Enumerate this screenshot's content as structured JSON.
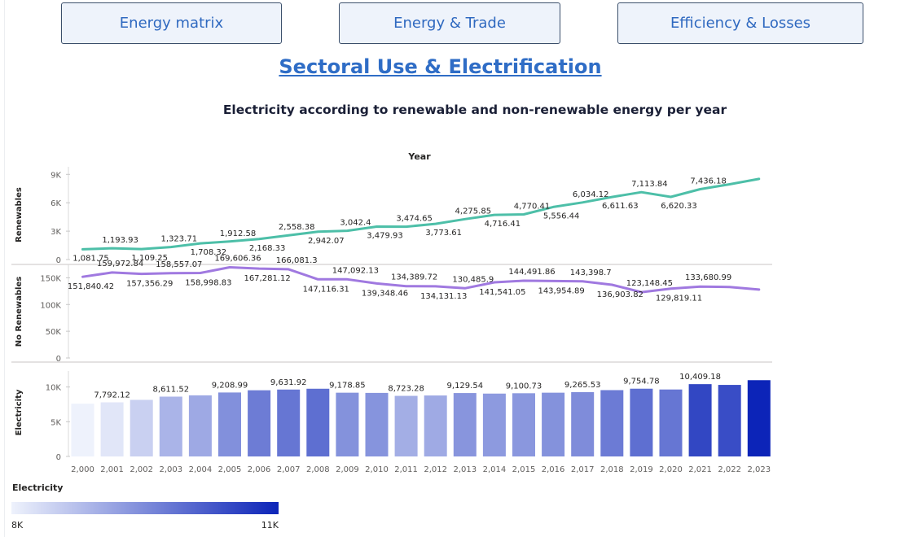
{
  "nav": {
    "buttons": [
      "Energy matrix",
      "Energy & Trade",
      "Efficiency & Losses"
    ]
  },
  "page_title": "Sectoral Use & Electrification",
  "chart_data": {
    "type": "line",
    "title": "Electricity according to renewable and non-renewable energy per year",
    "xlabel": "Year",
    "categories": [
      "2,000",
      "2,001",
      "2,002",
      "2,003",
      "2,004",
      "2,005",
      "2,006",
      "2,007",
      "2,008",
      "2,009",
      "2,010",
      "2,011",
      "2,012",
      "2,013",
      "2,014",
      "2,015",
      "2,016",
      "2,017",
      "2,018",
      "2,019",
      "2,020",
      "2,021",
      "2,022",
      "2,023"
    ],
    "panels": [
      {
        "type": "line",
        "ylabel": "Renewables",
        "color": "#4dbfa8",
        "ylim": [
          0,
          9800
        ],
        "yticks": [
          0,
          3000,
          6000,
          9000
        ],
        "ytick_labels": [
          "0",
          "3K",
          "6K",
          "9K"
        ],
        "values": [
          1081.75,
          1193.93,
          1109.25,
          1323.71,
          1708.32,
          1912.58,
          2168.33,
          2558.38,
          2942.07,
          3042.4,
          3479.93,
          3474.65,
          3773.61,
          4275.85,
          4716.41,
          4770.41,
          5556.44,
          6034.12,
          6611.63,
          7113.84,
          6620.33,
          7436.18,
          7956.0,
          8520.0
        ],
        "labels": [
          "1,081.75",
          "1,193.93",
          "1,109.25",
          "1,323.71",
          "1,708.32",
          "1,912.58",
          "2,168.33",
          "2,558.38",
          "2,942.07",
          "3,042.4",
          "3,479.93",
          "3,474.65",
          "3,773.61",
          "4,275.85",
          "4,716.41",
          "4,770.41",
          "5,556.44",
          "6,034.12",
          "6,611.63",
          "7,113.84",
          "6,620.33",
          "7,436.18",
          "",
          ""
        ]
      },
      {
        "type": "line",
        "ylabel": "No Renewables",
        "color": "#a079e0",
        "ylim": [
          0,
          175000
        ],
        "yticks": [
          0,
          50000,
          100000,
          150000
        ],
        "ytick_labels": [
          "0",
          "50K",
          "100K",
          "150K"
        ],
        "values": [
          151840.42,
          159972.84,
          157356.29,
          158557.07,
          158998.83,
          169606.36,
          167281.12,
          166081.3,
          147116.31,
          147092.13,
          139348.46,
          134389.72,
          134131.13,
          130485.9,
          141541.05,
          144491.86,
          143954.89,
          143398.7,
          136903.82,
          123148.45,
          129819.11,
          133680.99,
          132800.0,
          128000.0
        ],
        "labels": [
          "151,840.42",
          "159,972.84",
          "157,356.29",
          "158,557.07",
          "158,998.83",
          "169,606.36",
          "167,281.12",
          "166,081.3",
          "147,116.31",
          "147,092.13",
          "139,348.46",
          "134,389.72",
          "134,131.13",
          "130,485.9",
          "141,541.05",
          "144,491.86",
          "143,954.89",
          "143,398.7",
          "136,903.82",
          "123,148.45",
          "129,819.11",
          "133,680.99",
          "",
          ""
        ]
      },
      {
        "type": "bar",
        "ylabel": "Electricity",
        "ylim": [
          0,
          12300
        ],
        "yticks": [
          0,
          5000,
          10000
        ],
        "ytick_labels": [
          "0",
          "5K",
          "10K"
        ],
        "values": [
          7600,
          7792.12,
          8150,
          8611.52,
          8800,
          9208.99,
          9530,
          9631.92,
          9750,
          9178.85,
          9150,
          8723.28,
          8780,
          9129.54,
          9050,
          9100.73,
          9180,
          9265.53,
          9550,
          9754.78,
          9640,
          10409.18,
          10300,
          10980
        ],
        "labels": [
          "",
          "7,792.12",
          "",
          "8,611.52",
          "",
          "9,208.99",
          "",
          "9,631.92",
          "",
          "9,178.85",
          "",
          "8,723.28",
          "",
          "9,129.54",
          "",
          "9,100.73",
          "",
          "9,265.53",
          "",
          "9,754.78",
          "",
          "10,409.18",
          "",
          ""
        ]
      }
    ],
    "color_scale": {
      "label": "Electricity",
      "min_label": "8K",
      "max_label": "11K",
      "min": 7600,
      "max": 10980,
      "min_color": "#eef2fc",
      "max_color": "#0c24b8"
    },
    "grid": false
  }
}
